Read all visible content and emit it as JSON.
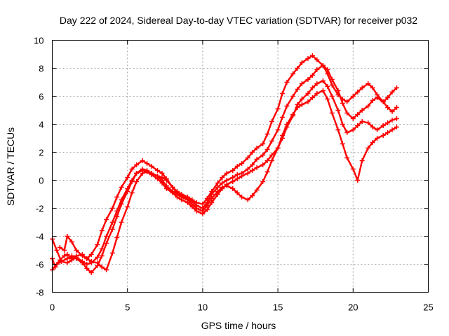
{
  "chart_data": {
    "type": "scatter",
    "title": "Day 222 of 2024, Sidereal Day-to-day VTEC variation (SDTVAR) for receiver p032",
    "xlabel": "GPS time / hours",
    "ylabel": "SDTVAR / TECUs",
    "xlim": [
      0,
      25
    ],
    "ylim": [
      -8,
      10
    ],
    "xticks": [
      0,
      5,
      10,
      15,
      20,
      25
    ],
    "yticks": [
      -8,
      -6,
      -4,
      -2,
      0,
      2,
      4,
      6,
      8,
      10
    ],
    "grid": true,
    "marker": "plus",
    "color": "#ff0000",
    "series": [
      {
        "x": [
          0.0,
          0.2,
          0.5,
          0.8,
          1.0,
          1.3,
          1.6,
          2.0,
          2.3,
          2.6,
          3.0,
          3.3,
          3.6,
          4.0,
          4.3,
          4.6,
          5.0,
          5.3,
          5.6,
          6.0,
          6.3,
          6.6,
          7.0,
          7.3,
          7.6,
          8.0,
          8.3,
          8.6,
          9.0,
          9.3,
          9.6,
          10.0,
          10.3,
          10.6,
          11.0,
          11.3,
          11.6,
          12.0,
          12.3,
          12.6,
          13.0,
          13.3,
          13.6,
          14.0,
          14.3,
          14.6,
          15.0,
          15.3,
          15.6,
          16.0,
          16.3,
          16.6,
          17.0,
          17.3,
          17.6,
          18.0,
          18.3,
          18.6,
          19.0,
          19.3,
          19.6,
          20.0,
          20.3,
          20.6,
          21.0,
          21.3,
          21.6,
          22.0,
          22.3,
          22.6,
          22.9
        ],
        "y": [
          -5.6,
          -6.2,
          -5.7,
          -5.4,
          -5.3,
          -5.6,
          -5.4,
          -5.3,
          -5.6,
          -5.3,
          -4.6,
          -3.6,
          -2.8,
          -2.0,
          -1.2,
          -0.5,
          0.2,
          0.8,
          1.1,
          1.4,
          1.2,
          1.0,
          0.7,
          0.5,
          0.1,
          -0.5,
          -0.8,
          -1.0,
          -1.2,
          -1.4,
          -1.6,
          -1.7,
          -1.3,
          -0.8,
          -0.2,
          0.2,
          0.5,
          0.7,
          1.0,
          1.2,
          1.6,
          2.0,
          2.3,
          2.6,
          3.3,
          4.2,
          5.1,
          6.2,
          7.0,
          7.6,
          8.0,
          8.4,
          8.7,
          8.9,
          8.6,
          8.2,
          7.6,
          6.8,
          6.1,
          5.8,
          5.6,
          6.0,
          6.3,
          6.6,
          6.9,
          6.6,
          6.1,
          5.6,
          5.9,
          6.3,
          6.6
        ]
      },
      {
        "x": [
          0.0,
          0.3,
          0.6,
          1.0,
          1.3,
          1.6,
          2.0,
          2.3,
          2.6,
          3.0,
          3.3,
          3.6,
          4.0,
          4.3,
          4.6,
          5.0,
          5.3,
          5.6,
          6.0,
          6.3,
          6.6,
          7.0,
          7.3,
          7.6,
          8.0,
          8.3,
          8.6,
          9.0,
          9.3,
          9.6,
          10.0,
          10.3,
          10.6,
          11.0,
          11.3,
          11.6,
          12.0,
          12.3,
          12.6,
          13.0,
          13.3,
          13.6,
          14.0,
          14.3,
          14.6,
          15.0,
          15.3,
          15.6,
          16.0,
          16.3,
          16.6,
          17.0,
          17.3,
          17.6,
          18.0,
          18.3,
          18.6,
          19.0,
          19.3,
          19.6,
          20.0,
          20.3,
          20.6,
          21.0,
          21.3,
          21.6,
          22.0,
          22.3,
          22.6,
          22.9
        ],
        "y": [
          -6.4,
          -6.0,
          -5.8,
          -5.9,
          -5.7,
          -5.5,
          -5.8,
          -6.0,
          -5.9,
          -5.5,
          -4.9,
          -4.0,
          -3.0,
          -2.2,
          -1.4,
          -0.6,
          0.0,
          0.5,
          0.8,
          0.7,
          0.5,
          0.3,
          0.2,
          0.0,
          -0.5,
          -0.9,
          -1.1,
          -1.3,
          -1.5,
          -1.8,
          -2.0,
          -1.6,
          -1.0,
          -0.5,
          -0.2,
          0.0,
          0.2,
          0.4,
          0.5,
          0.8,
          1.1,
          1.5,
          1.8,
          2.2,
          2.8,
          3.6,
          4.5,
          5.3,
          6.0,
          6.5,
          6.9,
          7.2,
          7.5,
          7.9,
          8.2,
          7.9,
          7.2,
          6.4,
          5.5,
          4.8,
          4.4,
          4.7,
          5.0,
          5.3,
          5.7,
          5.9,
          5.6,
          5.2,
          4.9,
          5.2
        ]
      },
      {
        "x": [
          0.0,
          0.3,
          0.6,
          1.0,
          1.3,
          1.6,
          2.0,
          2.3,
          2.6,
          3.0,
          3.3,
          3.6,
          4.0,
          4.3,
          4.6,
          5.0,
          5.3,
          5.6,
          6.0,
          6.3,
          6.6,
          7.0,
          7.3,
          7.6,
          8.0,
          8.3,
          8.6,
          9.0,
          9.3,
          9.6,
          10.0,
          10.3,
          10.6,
          11.0,
          11.3,
          11.6,
          12.0,
          12.3,
          12.6,
          13.0,
          13.3,
          13.6,
          14.0,
          14.3,
          14.6,
          15.0,
          15.3,
          15.6,
          16.0,
          16.3,
          16.6,
          17.0,
          17.3,
          17.6,
          18.0,
          18.3,
          18.6,
          19.0,
          19.3,
          19.6,
          20.0,
          20.3,
          20.6,
          21.0,
          21.3,
          21.6,
          22.0,
          22.3,
          22.6,
          22.9
        ],
        "y": [
          -4.2,
          -5.0,
          -5.8,
          -5.6,
          -5.4,
          -5.6,
          -5.9,
          -6.3,
          -6.6,
          -6.1,
          -5.4,
          -4.5,
          -3.5,
          -2.6,
          -1.7,
          -0.8,
          -0.1,
          0.5,
          0.7,
          0.6,
          0.4,
          0.1,
          -0.2,
          -0.6,
          -0.9,
          -1.2,
          -1.4,
          -1.6,
          -1.9,
          -2.2,
          -2.4,
          -2.1,
          -1.6,
          -1.0,
          -0.6,
          -0.3,
          -0.1,
          0.1,
          0.3,
          0.5,
          0.7,
          0.9,
          1.1,
          1.4,
          1.8,
          2.3,
          3.0,
          3.8,
          4.6,
          5.4,
          5.8,
          6.2,
          6.6,
          6.9,
          7.1,
          6.7,
          6.0,
          5.0,
          4.0,
          3.4,
          3.6,
          3.9,
          4.2,
          4.1,
          3.8,
          3.6,
          3.9,
          4.1,
          4.3,
          4.4
        ]
      },
      {
        "x": [
          0.5,
          0.8,
          1.0,
          1.3,
          1.6,
          2.0,
          2.3,
          2.6,
          3.0,
          3.3,
          3.6,
          4.0,
          4.3,
          4.6,
          5.0,
          5.3,
          5.6,
          6.0,
          6.3,
          6.6,
          7.0,
          7.3,
          7.6,
          8.0,
          8.3,
          8.6,
          9.0,
          9.3,
          9.6,
          10.0,
          10.3,
          10.6,
          11.0,
          11.3,
          11.6,
          12.0,
          12.3,
          12.6,
          13.0,
          13.3,
          13.6,
          14.0,
          14.3,
          14.6,
          15.0,
          15.3,
          15.6,
          16.0,
          16.3,
          16.6,
          17.0,
          17.3,
          17.6,
          18.0,
          18.3,
          18.6,
          19.0,
          19.3,
          19.6,
          20.0,
          20.3,
          20.6,
          21.0,
          21.3,
          21.6,
          22.0,
          22.3,
          22.6,
          22.9
        ],
        "y": [
          -4.8,
          -5.0,
          -4.0,
          -4.4,
          -5.0,
          -5.4,
          -5.6,
          -5.8,
          -5.9,
          -6.2,
          -6.4,
          -5.2,
          -4.1,
          -3.0,
          -1.9,
          -0.9,
          -0.1,
          0.5,
          0.6,
          0.5,
          0.3,
          0.0,
          -0.4,
          -0.8,
          -1.0,
          -1.2,
          -1.4,
          -1.7,
          -2.0,
          -2.2,
          -1.8,
          -1.3,
          -0.8,
          -0.5,
          -0.4,
          -0.6,
          -0.9,
          -1.2,
          -1.4,
          -1.1,
          -0.7,
          -0.1,
          0.6,
          1.4,
          2.3,
          3.2,
          4.0,
          4.7,
          5.2,
          5.4,
          5.6,
          5.9,
          6.2,
          6.4,
          5.8,
          4.8,
          3.6,
          2.6,
          1.6,
          0.8,
          0.0,
          1.4,
          2.3,
          2.7,
          3.0,
          3.2,
          3.4,
          3.6,
          3.8
        ]
      }
    ]
  }
}
